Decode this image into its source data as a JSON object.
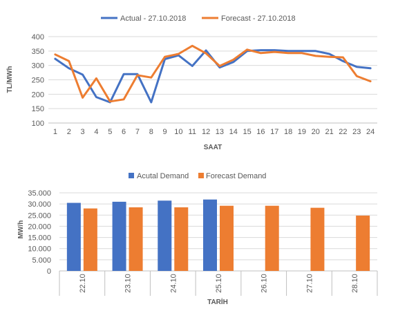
{
  "colors": {
    "actual": "#4472C4",
    "forecast": "#ED7D31",
    "grid": "#D9D9D9",
    "axis": "#BFBFBF",
    "text": "#595959"
  },
  "chart_data": [
    {
      "type": "line",
      "xlabel": "SAAT",
      "ylabel": "TL/MWh",
      "ylim": [
        100,
        400
      ],
      "yticks": [
        100,
        150,
        200,
        250,
        300,
        350,
        400
      ],
      "grid": true,
      "legend_position": "top",
      "categories": [
        "1",
        "2",
        "3",
        "4",
        "5",
        "6",
        "7",
        "8",
        "9",
        "10",
        "11",
        "12",
        "13",
        "14",
        "15",
        "16",
        "17",
        "18",
        "19",
        "20",
        "21",
        "22",
        "23",
        "24"
      ],
      "series": [
        {
          "name": "Actual - 27.10.2018",
          "color": "#4472C4",
          "values": [
            323,
            290,
            268,
            190,
            172,
            270,
            270,
            172,
            322,
            335,
            298,
            352,
            293,
            312,
            350,
            353,
            353,
            350,
            350,
            350,
            340,
            315,
            295,
            290
          ]
        },
        {
          "name": "Forecast - 27.10.2018",
          "color": "#ED7D31",
          "values": [
            338,
            315,
            188,
            255,
            175,
            182,
            266,
            258,
            330,
            340,
            368,
            342,
            298,
            320,
            355,
            343,
            347,
            343,
            343,
            333,
            330,
            328,
            263,
            245
          ]
        }
      ]
    },
    {
      "type": "bar",
      "xlabel": "TARİH",
      "ylabel": "MW/h",
      "ylim": [
        0,
        35000
      ],
      "ytick_values": [
        0,
        5000,
        10000,
        15000,
        20000,
        25000,
        30000,
        35000
      ],
      "ytick_labels": [
        "0",
        "5.000",
        "10.000",
        "15.000",
        "20.000",
        "25.000",
        "30.000",
        "35.000"
      ],
      "grid": true,
      "legend_position": "top",
      "categories": [
        "22.10",
        "23.10",
        "24.10",
        "25.10",
        "26.10",
        "27.10",
        "28.10"
      ],
      "series": [
        {
          "name": "Acutal Demand",
          "color": "#4472C4",
          "values": [
            30500,
            31000,
            31500,
            32000,
            null,
            null,
            null
          ]
        },
        {
          "name": "Forecast Demand",
          "color": "#ED7D31",
          "values": [
            28000,
            28500,
            28500,
            29200,
            29200,
            28300,
            24800
          ]
        }
      ]
    }
  ]
}
